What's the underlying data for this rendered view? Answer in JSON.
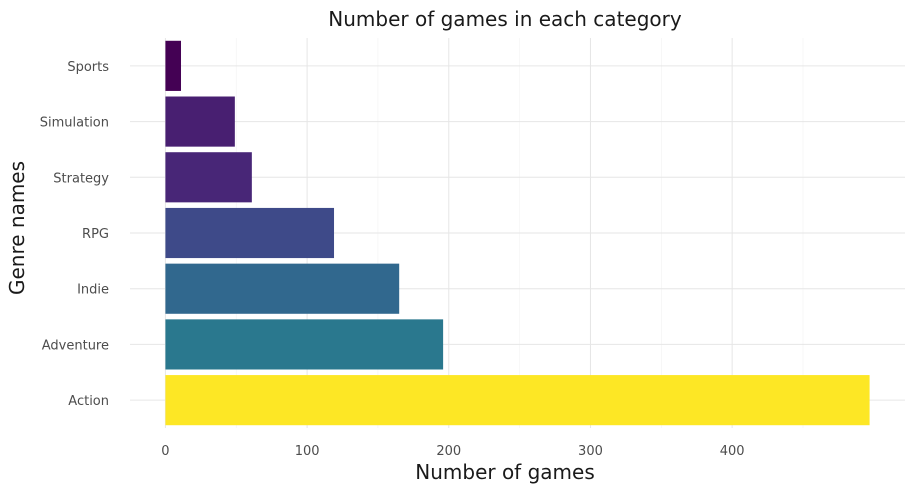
{
  "chart_data": {
    "type": "bar",
    "orientation": "horizontal",
    "title": "Number of games in each category",
    "xlabel": "Number of games",
    "ylabel": "Genre names",
    "categories": [
      "Action",
      "Adventure",
      "Indie",
      "RPG",
      "Strategy",
      "Simulation",
      "Sports"
    ],
    "values": [
      497,
      196,
      165,
      119,
      61,
      49,
      11
    ],
    "xlim": [
      -25,
      522
    ],
    "xticks": [
      0,
      100,
      200,
      300,
      400
    ],
    "grid": true,
    "legend": "none",
    "colors": [
      "#FDE725",
      "#2A788E",
      "#31688E",
      "#3E4A89",
      "#482677",
      "#481F71",
      "#440154"
    ]
  }
}
